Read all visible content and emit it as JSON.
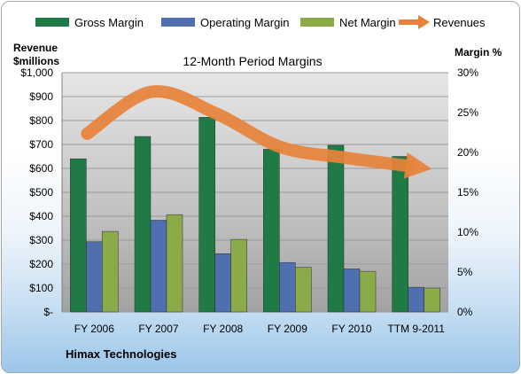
{
  "chart_data": {
    "type": "bar",
    "title": "12-Month Period Margins",
    "company": "Himax Technologies",
    "y_left_label": [
      "Revenue",
      "$millions"
    ],
    "y_right_label": "Margin %",
    "categories": [
      "FY 2006",
      "FY 2007",
      "FY 2008",
      "FY 2009",
      "FY 2010",
      "TTM 9-2011"
    ],
    "y_left_ticks": [
      "$-",
      "$100",
      "$200",
      "$300",
      "$400",
      "$500",
      "$600",
      "$700",
      "$800",
      "$900",
      "$1,000"
    ],
    "y_right_ticks": [
      "0%",
      "5%",
      "10%",
      "15%",
      "20%",
      "25%",
      "30%"
    ],
    "ylim_left": [
      0,
      1000
    ],
    "ylim_right": [
      0,
      30
    ],
    "series": [
      {
        "name": "Gross Margin",
        "color": "#1f7a45",
        "values": [
          19.2,
          22.0,
          24.4,
          20.4,
          20.9,
          19.5
        ]
      },
      {
        "name": "Operating Margin",
        "color": "#4f6fae",
        "values": [
          8.8,
          11.5,
          7.3,
          6.2,
          5.4,
          3.1
        ]
      },
      {
        "name": "Net Margin",
        "color": "#8aab48",
        "values": [
          10.1,
          12.2,
          9.1,
          5.6,
          5.1,
          3.0
        ]
      }
    ],
    "revenue_series": {
      "name": "Revenues",
      "color": "#e8823a",
      "values": [
        745,
        920,
        830,
        690,
        645,
        610
      ]
    },
    "grid": true,
    "legend_position": "top"
  }
}
